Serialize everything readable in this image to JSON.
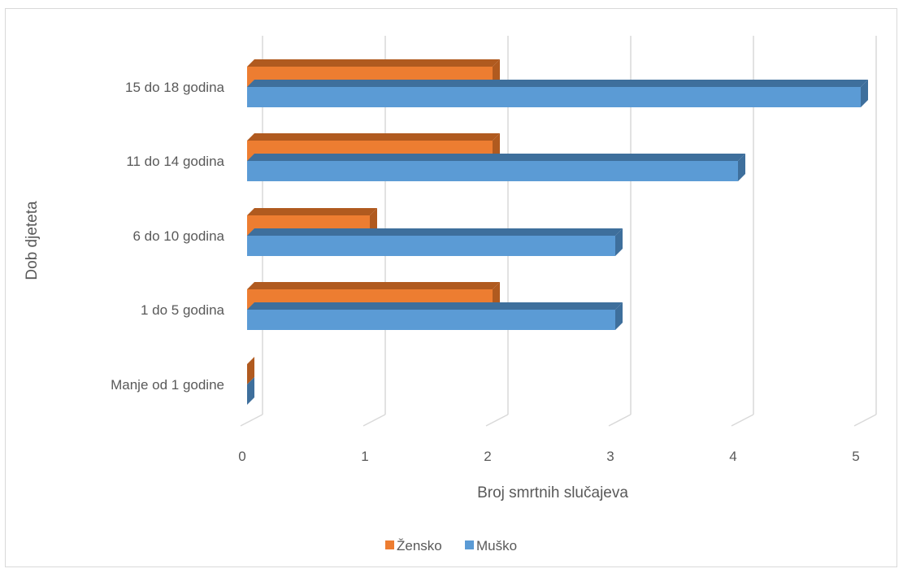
{
  "chart_data": {
    "type": "bar",
    "orientation": "horizontal",
    "style": "3d-clustered",
    "title": "",
    "xlabel": "Broj smrtnih slučajeva",
    "ylabel": "Dob djeteta",
    "xlim": [
      0,
      5
    ],
    "x_ticks": [
      "0",
      "1",
      "2",
      "3",
      "4",
      "5"
    ],
    "categories": [
      "15 do 18 godina",
      "11 do 14 godina",
      "6 do 10 godina",
      "1 do 5 godina",
      "Manje od 1 godine"
    ],
    "series": [
      {
        "name": "Žensko",
        "color": "#ed7d31",
        "side_color": "#b05a1f",
        "values": [
          2,
          2,
          1,
          2,
          0
        ]
      },
      {
        "name": "Muško",
        "color": "#5b9bd5",
        "side_color": "#3e6f9c",
        "values": [
          5,
          4,
          3,
          3,
          0
        ]
      }
    ],
    "grid": "vertical",
    "legend_position": "bottom"
  }
}
